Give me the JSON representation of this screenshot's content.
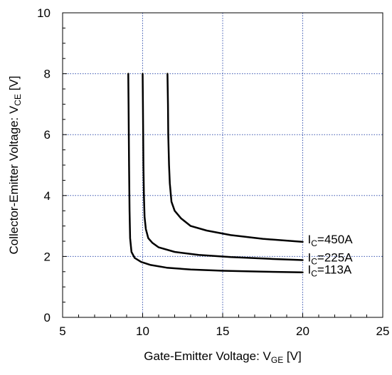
{
  "chart_data": {
    "type": "line",
    "xlabel": {
      "main": "Gate-Emitter Voltage: V",
      "sub": "GE",
      "unit": " [V]"
    },
    "ylabel": {
      "main": "Collector-Emitter Voltage: V",
      "sub": "CE",
      "unit": " [V]"
    },
    "xlim": [
      5,
      25
    ],
    "ylim": [
      0,
      10
    ],
    "x_ticks": [
      5,
      10,
      15,
      20,
      25
    ],
    "y_ticks": [
      0,
      2,
      4,
      6,
      8,
      10
    ],
    "grid": true,
    "series": [
      {
        "name": "I_C=450A",
        "label": {
          "main": "I",
          "sub": "C",
          "rest": "=450A"
        },
        "x": [
          11.55,
          11.58,
          11.6,
          11.65,
          11.7,
          11.8,
          12.0,
          12.4,
          13.0,
          14.0,
          15.5,
          17.5,
          20.0
        ],
        "y": [
          8.0,
          7.0,
          6.0,
          5.0,
          4.4,
          3.8,
          3.5,
          3.25,
          3.0,
          2.85,
          2.7,
          2.58,
          2.48
        ]
      },
      {
        "name": "I_C=225A",
        "label": {
          "main": "I",
          "sub": "C",
          "rest": "=225A"
        },
        "x": [
          10.0,
          10.02,
          10.05,
          10.08,
          10.12,
          10.2,
          10.35,
          10.6,
          11.0,
          12.0,
          13.5,
          15.5,
          18.0,
          20.0
        ],
        "y": [
          8.0,
          7.0,
          5.0,
          4.0,
          3.3,
          2.9,
          2.6,
          2.45,
          2.3,
          2.15,
          2.05,
          1.98,
          1.92,
          1.88
        ]
      },
      {
        "name": "I_C=113A",
        "label": {
          "main": "I",
          "sub": "C",
          "rest": "=113A"
        },
        "x": [
          9.1,
          9.12,
          9.15,
          9.18,
          9.22,
          9.3,
          9.5,
          9.9,
          10.5,
          11.5,
          13.0,
          15.0,
          17.5,
          20.0
        ],
        "y": [
          8.0,
          7.0,
          5.0,
          3.5,
          2.6,
          2.15,
          1.95,
          1.82,
          1.72,
          1.63,
          1.57,
          1.53,
          1.5,
          1.48
        ]
      }
    ]
  }
}
